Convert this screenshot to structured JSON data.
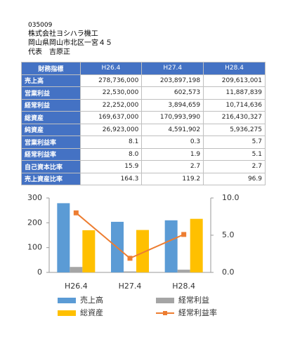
{
  "header": {
    "code": "035009",
    "company": "株式会社ヨシハラ機工",
    "address": "岡山県岡山市北区一宮４５",
    "representative": "代表　吉原正"
  },
  "table": {
    "columns": [
      "財務指標",
      "H26.4",
      "H27.4",
      "H28.4"
    ],
    "rows": [
      [
        "売上高",
        "278,736,000",
        "203,897,198",
        "209,613,001"
      ],
      [
        "営業利益",
        "22,530,000",
        "602,573",
        "11,887,839"
      ],
      [
        "経常利益",
        "22,252,000",
        "3,894,659",
        "10,714,636"
      ],
      [
        "総資産",
        "169,637,000",
        "170,993,990",
        "216,430,327"
      ],
      [
        "純資産",
        "26,923,000",
        "4,591,902",
        "5,936,275"
      ],
      [
        "営業利益率",
        "8.1",
        "0.3",
        "5.7"
      ],
      [
        "経常利益率",
        "8.0",
        "1.9",
        "5.1"
      ],
      [
        "自己資本比率",
        "15.9",
        "2.7",
        "2.7"
      ],
      [
        "売上資産比率",
        "164.3",
        "119.2",
        "96.9"
      ]
    ]
  },
  "chart_data": {
    "type": "bar",
    "categories": [
      "H26.4",
      "H27.4",
      "H28.4"
    ],
    "series": [
      {
        "name": "売上高",
        "color": "#5b9bd5",
        "values": [
          279,
          204,
          210
        ]
      },
      {
        "name": "経常利益",
        "color": "#a5a5a5",
        "values": [
          22,
          4,
          11
        ]
      },
      {
        "name": "総資産",
        "color": "#ffc000",
        "values": [
          170,
          171,
          216
        ]
      },
      {
        "name": "経常利益率",
        "color": "#ed7d31",
        "type": "line",
        "axis": "y2",
        "values": [
          8.0,
          1.9,
          5.1
        ]
      }
    ],
    "ylim": [
      0,
      300
    ],
    "yticks": [
      0,
      100,
      200,
      300
    ],
    "y2lim": [
      0,
      10
    ],
    "y2ticks": [
      {
        "value": 0,
        "label": "0.0"
      },
      {
        "value": 5,
        "label": "5.0"
      },
      {
        "value": 10,
        "label": "10.0"
      }
    ]
  }
}
